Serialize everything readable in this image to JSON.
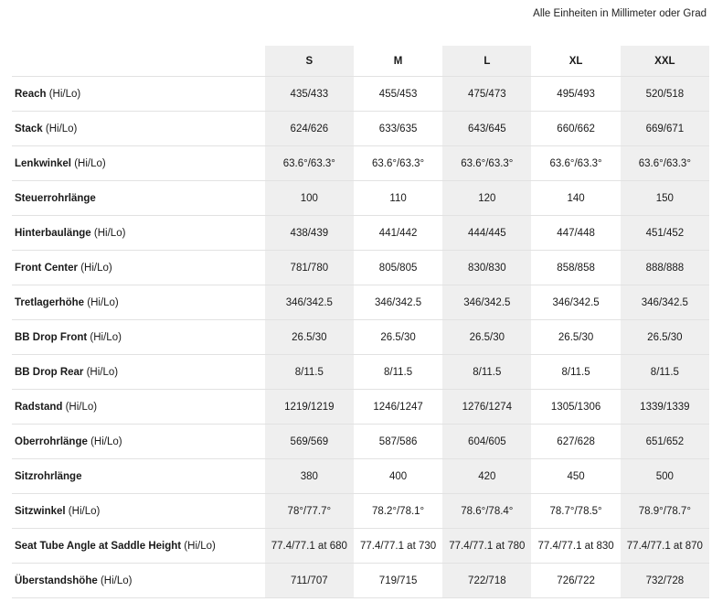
{
  "note": "Alle Einheiten in Millimeter oder Grad",
  "sizes": [
    "S",
    "M",
    "L",
    "XL",
    "XXL"
  ],
  "rows": [
    {
      "name": "Reach",
      "suffix": " (Hi/Lo)",
      "values": [
        "435/433",
        "455/453",
        "475/473",
        "495/493",
        "520/518"
      ]
    },
    {
      "name": "Stack",
      "suffix": " (Hi/Lo)",
      "values": [
        "624/626",
        "633/635",
        "643/645",
        "660/662",
        "669/671"
      ]
    },
    {
      "name": "Lenkwinkel",
      "suffix": " (Hi/Lo)",
      "values": [
        "63.6°/63.3°",
        "63.6°/63.3°",
        "63.6°/63.3°",
        "63.6°/63.3°",
        "63.6°/63.3°"
      ]
    },
    {
      "name": "Steuerrohrlänge",
      "suffix": "",
      "values": [
        "100",
        "110",
        "120",
        "140",
        "150"
      ]
    },
    {
      "name": "Hinterbaulänge",
      "suffix": " (Hi/Lo)",
      "values": [
        "438/439",
        "441/442",
        "444/445",
        "447/448",
        "451/452"
      ]
    },
    {
      "name": "Front Center",
      "suffix": " (Hi/Lo)",
      "values": [
        "781/780",
        "805/805",
        "830/830",
        "858/858",
        "888/888"
      ]
    },
    {
      "name": "Tretlagerhöhe",
      "suffix": " (Hi/Lo)",
      "values": [
        "346/342.5",
        "346/342.5",
        "346/342.5",
        "346/342.5",
        "346/342.5"
      ]
    },
    {
      "name": "BB Drop Front",
      "suffix": " (Hi/Lo)",
      "values": [
        "26.5/30",
        "26.5/30",
        "26.5/30",
        "26.5/30",
        "26.5/30"
      ]
    },
    {
      "name": "BB Drop Rear",
      "suffix": " (Hi/Lo)",
      "values": [
        "8/11.5",
        "8/11.5",
        "8/11.5",
        "8/11.5",
        "8/11.5"
      ]
    },
    {
      "name": "Radstand",
      "suffix": " (Hi/Lo)",
      "values": [
        "1219/1219",
        "1246/1247",
        "1276/1274",
        "1305/1306",
        "1339/1339"
      ]
    },
    {
      "name": "Oberrohrlänge",
      "suffix": " (Hi/Lo)",
      "values": [
        "569/569",
        "587/586",
        "604/605",
        "627/628",
        "651/652"
      ]
    },
    {
      "name": "Sitzrohrlänge",
      "suffix": "",
      "values": [
        "380",
        "400",
        "420",
        "450",
        "500"
      ]
    },
    {
      "name": "Sitzwinkel",
      "suffix": " (Hi/Lo)",
      "values": [
        "78°/77.7°",
        "78.2°/78.1°",
        "78.6°/78.4°",
        "78.7°/78.5°",
        "78.9°/78.7°"
      ]
    },
    {
      "name": "Seat Tube Angle at Saddle Height",
      "suffix": " (Hi/Lo)",
      "values": [
        "77.4/77.1 at 680",
        "77.4/77.1 at 730",
        "77.4/77.1 at 780",
        "77.4/77.1 at 830",
        "77.4/77.1 at 870"
      ]
    },
    {
      "name": "Überstandshöhe",
      "suffix": " (Hi/Lo)",
      "values": [
        "711/707",
        "719/715",
        "722/718",
        "726/722",
        "732/728"
      ]
    }
  ],
  "colors": {
    "shaded_column": "#efefef",
    "divider": "#e2e2e2",
    "text": "#1a1a1a"
  }
}
